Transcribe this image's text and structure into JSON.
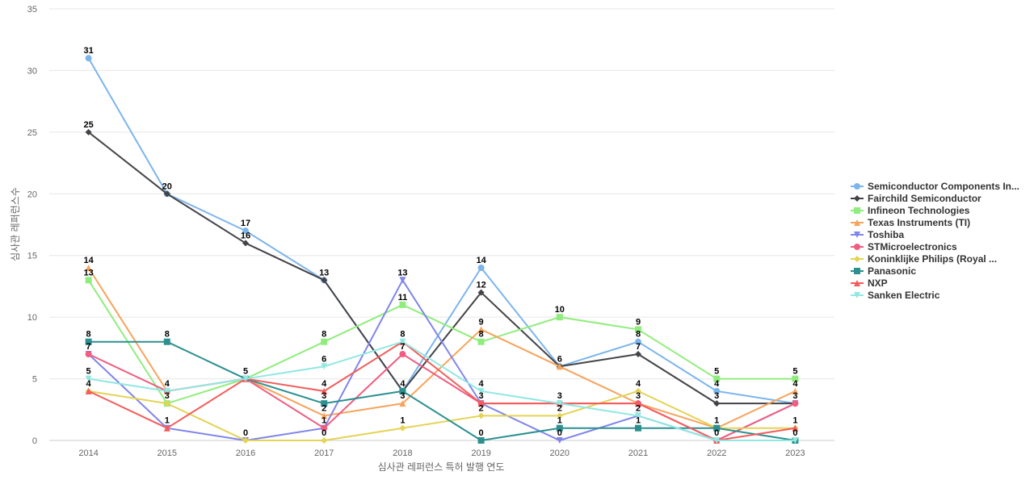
{
  "chart_data": {
    "type": "line",
    "x": [
      "2014",
      "2015",
      "2016",
      "2017",
      "2018",
      "2019",
      "2020",
      "2021",
      "2022",
      "2023"
    ],
    "xlabel": "심사관 레퍼런스 특허 발행 연도",
    "ylabel": "심사관 레퍼런스수",
    "ylim": [
      0,
      35
    ],
    "yticks": [
      0,
      5,
      10,
      15,
      20,
      25,
      30,
      35
    ],
    "grid": true,
    "legend_position": "right",
    "series": [
      {
        "name": "Semiconductor Components In...",
        "color": "#7cb5ec",
        "marker": "circle",
        "values": [
          31,
          20,
          17,
          13,
          4,
          14,
          6,
          8,
          4,
          3
        ]
      },
      {
        "name": "Fairchild Semiconductor",
        "color": "#434348",
        "marker": "diamond",
        "values": [
          25,
          20,
          16,
          13,
          4,
          12,
          6,
          7,
          3,
          3
        ]
      },
      {
        "name": "Infineon Technologies",
        "color": "#90ed7d",
        "marker": "square",
        "values": [
          13,
          3,
          5,
          8,
          11,
          8,
          10,
          9,
          5,
          5
        ]
      },
      {
        "name": "Texas Instruments (TI)",
        "color": "#f7a35c",
        "marker": "triangle",
        "values": [
          14,
          4,
          5,
          2,
          3,
          9,
          6,
          3,
          1,
          4
        ]
      },
      {
        "name": "Toshiba",
        "color": "#8085e9",
        "marker": "triangle-down",
        "values": [
          7,
          1,
          0,
          1,
          13,
          3,
          0,
          2,
          0,
          3
        ]
      },
      {
        "name": "STMicroelectronics",
        "color": "#f15c80",
        "marker": "circle",
        "values": [
          7,
          4,
          5,
          1,
          7,
          3,
          3,
          3,
          0,
          3
        ]
      },
      {
        "name": "Koninklijke Philips (Royal ...",
        "color": "#e4d354",
        "marker": "diamond",
        "values": [
          4,
          3,
          0,
          0,
          1,
          2,
          2,
          4,
          1,
          1
        ]
      },
      {
        "name": "Panasonic",
        "color": "#2b908f",
        "marker": "square",
        "values": [
          8,
          8,
          5,
          3,
          4,
          0,
          1,
          1,
          1,
          0
        ]
      },
      {
        "name": "NXP",
        "color": "#f45b5b",
        "marker": "triangle",
        "values": [
          4,
          1,
          5,
          4,
          8,
          3,
          3,
          3,
          0,
          1
        ]
      },
      {
        "name": "Sanken Electric",
        "color": "#91e8e1",
        "marker": "triangle-down",
        "values": [
          5,
          4,
          5,
          6,
          8,
          4,
          3,
          2,
          0,
          0
        ]
      }
    ],
    "data_labels": [
      {
        "x": "2014",
        "value": 31,
        "text": "31"
      },
      {
        "x": "2014",
        "value": 25,
        "text": "25"
      },
      {
        "x": "2014",
        "value": 14,
        "text": "14"
      },
      {
        "x": "2014",
        "value": 13,
        "text": "13"
      },
      {
        "x": "2014",
        "value": 8,
        "text": "8"
      },
      {
        "x": "2014",
        "value": 7,
        "text": "7"
      },
      {
        "x": "2014",
        "value": 5,
        "text": "5"
      },
      {
        "x": "2014",
        "value": 4,
        "text": "4"
      },
      {
        "x": "2015",
        "value": 20,
        "text": "20"
      },
      {
        "x": "2015",
        "value": 8,
        "text": "8"
      },
      {
        "x": "2015",
        "value": 4,
        "text": "4"
      },
      {
        "x": "2015",
        "value": 3,
        "text": "3"
      },
      {
        "x": "2015",
        "value": 1,
        "text": "1"
      },
      {
        "x": "2016",
        "value": 17,
        "text": "17"
      },
      {
        "x": "2016",
        "value": 16,
        "text": "16"
      },
      {
        "x": "2016",
        "value": 5,
        "text": "5"
      },
      {
        "x": "2016",
        "value": 0,
        "text": "0"
      },
      {
        "x": "2017",
        "value": 13,
        "text": "13"
      },
      {
        "x": "2017",
        "value": 8,
        "text": "8"
      },
      {
        "x": "2017",
        "value": 6,
        "text": "6"
      },
      {
        "x": "2017",
        "value": 4,
        "text": "4"
      },
      {
        "x": "2017",
        "value": 3,
        "text": "3"
      },
      {
        "x": "2017",
        "value": 2,
        "text": "2"
      },
      {
        "x": "2017",
        "value": 1,
        "text": "1"
      },
      {
        "x": "2017",
        "value": 0,
        "text": "0"
      },
      {
        "x": "2018",
        "value": 13,
        "text": "13"
      },
      {
        "x": "2018",
        "value": 11,
        "text": "11"
      },
      {
        "x": "2018",
        "value": 8,
        "text": "8"
      },
      {
        "x": "2018",
        "value": 7,
        "text": "7"
      },
      {
        "x": "2018",
        "value": 4,
        "text": "4"
      },
      {
        "x": "2018",
        "value": 3,
        "text": "3"
      },
      {
        "x": "2018",
        "value": 1,
        "text": "1"
      },
      {
        "x": "2019",
        "value": 14,
        "text": "14"
      },
      {
        "x": "2019",
        "value": 12,
        "text": "12"
      },
      {
        "x": "2019",
        "value": 9,
        "text": "9"
      },
      {
        "x": "2019",
        "value": 8,
        "text": "8"
      },
      {
        "x": "2019",
        "value": 4,
        "text": "4"
      },
      {
        "x": "2019",
        "value": 3,
        "text": "3"
      },
      {
        "x": "2019",
        "value": 2,
        "text": "2"
      },
      {
        "x": "2019",
        "value": 0,
        "text": "0"
      },
      {
        "x": "2020",
        "value": 10,
        "text": "10"
      },
      {
        "x": "2020",
        "value": 6,
        "text": "6"
      },
      {
        "x": "2020",
        "value": 3,
        "text": "3"
      },
      {
        "x": "2020",
        "value": 2,
        "text": "2"
      },
      {
        "x": "2020",
        "value": 1,
        "text": "1"
      },
      {
        "x": "2020",
        "value": 0,
        "text": "0"
      },
      {
        "x": "2021",
        "value": 9,
        "text": "9"
      },
      {
        "x": "2021",
        "value": 8,
        "text": "8"
      },
      {
        "x": "2021",
        "value": 7,
        "text": "7"
      },
      {
        "x": "2021",
        "value": 4,
        "text": "4"
      },
      {
        "x": "2021",
        "value": 3,
        "text": "3"
      },
      {
        "x": "2021",
        "value": 2,
        "text": "2"
      },
      {
        "x": "2021",
        "value": 1,
        "text": "1"
      },
      {
        "x": "2022",
        "value": 5,
        "text": "5"
      },
      {
        "x": "2022",
        "value": 4,
        "text": "4"
      },
      {
        "x": "2022",
        "value": 3,
        "text": "3"
      },
      {
        "x": "2022",
        "value": 1,
        "text": "1"
      },
      {
        "x": "2022",
        "value": 0,
        "text": "0"
      },
      {
        "x": "2023",
        "value": 5,
        "text": "5"
      },
      {
        "x": "2023",
        "value": 4,
        "text": "4"
      },
      {
        "x": "2023",
        "value": 3,
        "text": "3"
      },
      {
        "x": "2023",
        "value": 1,
        "text": "1"
      },
      {
        "x": "2023",
        "value": 0,
        "text": "0"
      }
    ]
  }
}
